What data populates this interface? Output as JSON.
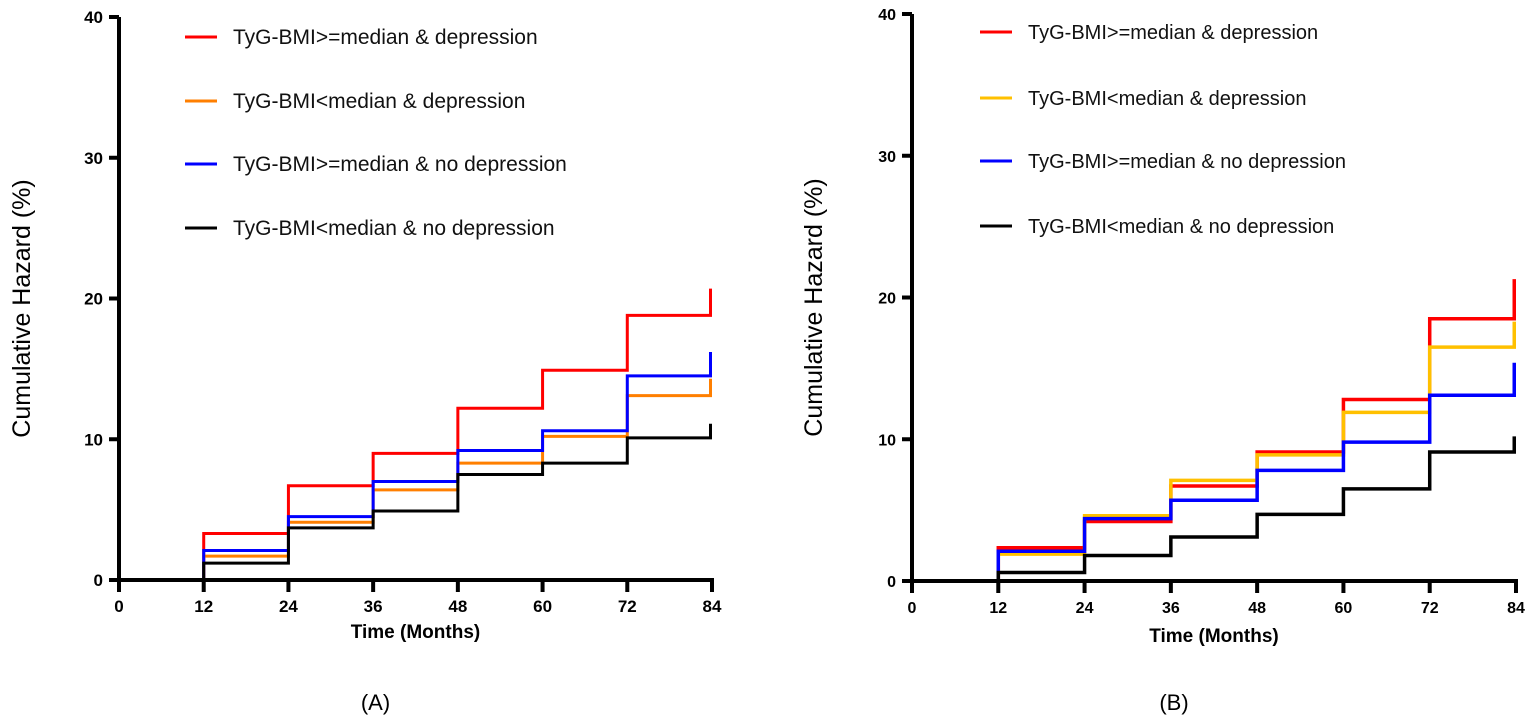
{
  "chart_data": [
    {
      "type": "line",
      "step": true,
      "panel_label": "(A)",
      "xlabel": "Time (Months)",
      "ylabel": "Cumulative Hazard (%)",
      "xlim": [
        0,
        84
      ],
      "ylim": [
        0,
        40
      ],
      "xticks": [
        0,
        12,
        24,
        36,
        48,
        60,
        72,
        84
      ],
      "yticks": [
        0,
        10,
        20,
        30,
        40
      ],
      "grid": false,
      "legend_position": "top-center",
      "x": [
        0,
        12,
        24,
        36,
        48,
        60,
        72,
        84
      ],
      "series": [
        {
          "name": "TyG-BMI>=median & depression",
          "color": "#ff0000",
          "values": [
            0,
            3.3,
            6.7,
            9.0,
            12.2,
            14.9,
            18.8,
            20.7
          ]
        },
        {
          "name": "TyG-BMI<median & depression",
          "color": "#ff7f00",
          "values": [
            0,
            1.7,
            4.1,
            6.4,
            8.3,
            10.2,
            13.1,
            14.3
          ]
        },
        {
          "name": "TyG-BMI>=median & no depression",
          "color": "#0000ff",
          "values": [
            0,
            2.1,
            4.5,
            7.0,
            9.2,
            10.6,
            14.5,
            16.2
          ]
        },
        {
          "name": "TyG-BMI<median & no depression",
          "color": "#000000",
          "values": [
            0,
            1.2,
            3.7,
            4.9,
            7.5,
            8.3,
            10.1,
            11.1
          ]
        }
      ]
    },
    {
      "type": "line",
      "step": true,
      "panel_label": "(B)",
      "xlabel": "Time (Months)",
      "ylabel": "Cumulative Hazard (%)",
      "xlim": [
        0,
        84
      ],
      "ylim": [
        0,
        40
      ],
      "xticks": [
        0,
        12,
        24,
        36,
        48,
        60,
        72,
        84
      ],
      "yticks": [
        0,
        10,
        20,
        30,
        40
      ],
      "grid": false,
      "legend_position": "top-center",
      "x": [
        0,
        12,
        24,
        36,
        48,
        60,
        72,
        84
      ],
      "series": [
        {
          "name": "TyG-BMI>=median & depression",
          "color": "#ff0000",
          "values": [
            0,
            2.35,
            4.2,
            6.7,
            9.1,
            12.8,
            18.5,
            21.3
          ]
        },
        {
          "name": "TyG-BMI<median & depression",
          "color": "#ffc000",
          "values": [
            0,
            1.9,
            4.6,
            7.1,
            8.9,
            11.9,
            16.5,
            18.3
          ]
        },
        {
          "name": "TyG-BMI>=median & no depression",
          "color": "#0000ff",
          "values": [
            0,
            2.1,
            4.4,
            5.7,
            7.8,
            9.8,
            13.1,
            15.4
          ]
        },
        {
          "name": "TyG-BMI<median & no depression",
          "color": "#000000",
          "values": [
            0,
            0.6,
            1.8,
            3.1,
            4.7,
            6.5,
            9.1,
            10.2
          ]
        }
      ]
    }
  ]
}
